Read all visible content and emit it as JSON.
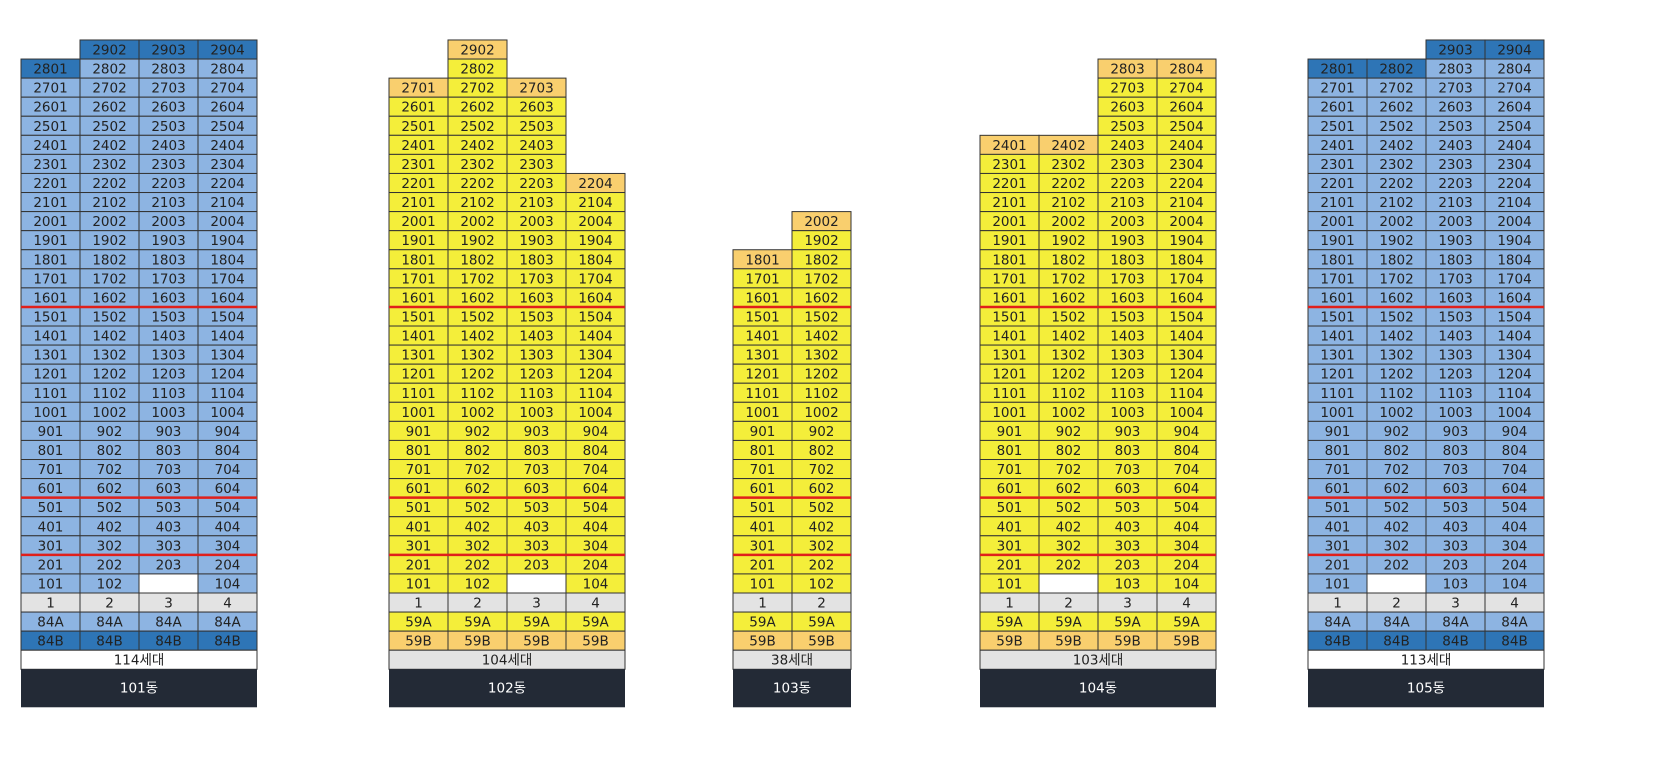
{
  "buildings": [
    {
      "name": "101동",
      "households": "114세대",
      "households_bg": "#ffffff",
      "color": "#8db4e2",
      "accent_color": "#2e75b6",
      "accent": [
        "2902",
        "2903",
        "2904",
        "2801"
      ],
      "floors": [
        [
          null,
          "2902",
          "2903",
          "2904"
        ],
        [
          "2801",
          "2802",
          "2803",
          "2804"
        ],
        [
          "2701",
          "2702",
          "2703",
          "2704"
        ],
        [
          "2601",
          "2602",
          "2603",
          "2604"
        ],
        [
          "2501",
          "2502",
          "2503",
          "2504"
        ],
        [
          "2401",
          "2402",
          "2403",
          "2404"
        ],
        [
          "2301",
          "2302",
          "2303",
          "2304"
        ],
        [
          "2201",
          "2202",
          "2203",
          "2204"
        ],
        [
          "2101",
          "2102",
          "2103",
          "2104"
        ],
        [
          "2001",
          "2002",
          "2003",
          "2004"
        ],
        [
          "1901",
          "1902",
          "1903",
          "1904"
        ],
        [
          "1801",
          "1802",
          "1803",
          "1804"
        ],
        [
          "1701",
          "1702",
          "1703",
          "1704"
        ],
        [
          "1601",
          "1602",
          "1603",
          "1604"
        ],
        [
          "1501",
          "1502",
          "1503",
          "1504"
        ],
        [
          "1401",
          "1402",
          "1403",
          "1404"
        ],
        [
          "1301",
          "1302",
          "1303",
          "1304"
        ],
        [
          "1201",
          "1202",
          "1203",
          "1204"
        ],
        [
          "1101",
          "1102",
          "1103",
          "1104"
        ],
        [
          "1001",
          "1002",
          "1003",
          "1004"
        ],
        [
          "901",
          "902",
          "903",
          "904"
        ],
        [
          "801",
          "802",
          "803",
          "804"
        ],
        [
          "701",
          "702",
          "703",
          "704"
        ],
        [
          "601",
          "602",
          "603",
          "604"
        ],
        [
          "501",
          "502",
          "503",
          "504"
        ],
        [
          "401",
          "402",
          "403",
          "404"
        ],
        [
          "301",
          "302",
          "303",
          "304"
        ],
        [
          "201",
          "202",
          "203",
          "204"
        ],
        [
          "101",
          "102",
          null,
          "104"
        ]
      ],
      "line_numbers": [
        "1",
        "2",
        "3",
        "4"
      ],
      "types": [
        [
          "84A",
          "84A",
          "84A",
          "84A"
        ],
        [
          "84B",
          "84B",
          "84B",
          "84B"
        ]
      ],
      "type_colors": [
        "#8db4e2",
        "#2e75b6"
      ]
    },
    {
      "name": "102동",
      "households": "104세대",
      "households_bg": "#e3e3e3",
      "color": "#f4ee3a",
      "accent_color": "#f9cf6e",
      "accent": [
        "2902",
        "2701",
        "2703",
        "2204"
      ],
      "floors": [
        [
          null,
          "2902",
          null,
          null
        ],
        [
          null,
          "2802",
          null,
          null
        ],
        [
          "2701",
          "2702",
          "2703",
          null
        ],
        [
          "2601",
          "2602",
          "2603",
          null
        ],
        [
          "2501",
          "2502",
          "2503",
          null
        ],
        [
          "2401",
          "2402",
          "2403",
          null
        ],
        [
          "2301",
          "2302",
          "2303",
          null
        ],
        [
          "2201",
          "2202",
          "2203",
          "2204"
        ],
        [
          "2101",
          "2102",
          "2103",
          "2104"
        ],
        [
          "2001",
          "2002",
          "2003",
          "2004"
        ],
        [
          "1901",
          "1902",
          "1903",
          "1904"
        ],
        [
          "1801",
          "1802",
          "1803",
          "1804"
        ],
        [
          "1701",
          "1702",
          "1703",
          "1704"
        ],
        [
          "1601",
          "1602",
          "1603",
          "1604"
        ],
        [
          "1501",
          "1502",
          "1503",
          "1504"
        ],
        [
          "1401",
          "1402",
          "1403",
          "1404"
        ],
        [
          "1301",
          "1302",
          "1303",
          "1304"
        ],
        [
          "1201",
          "1202",
          "1203",
          "1204"
        ],
        [
          "1101",
          "1102",
          "1103",
          "1104"
        ],
        [
          "1001",
          "1002",
          "1003",
          "1004"
        ],
        [
          "901",
          "902",
          "903",
          "904"
        ],
        [
          "801",
          "802",
          "803",
          "804"
        ],
        [
          "701",
          "702",
          "703",
          "704"
        ],
        [
          "601",
          "602",
          "603",
          "604"
        ],
        [
          "501",
          "502",
          "503",
          "504"
        ],
        [
          "401",
          "402",
          "403",
          "404"
        ],
        [
          "301",
          "302",
          "303",
          "304"
        ],
        [
          "201",
          "202",
          "203",
          "204"
        ],
        [
          "101",
          "102",
          null,
          "104"
        ]
      ],
      "line_numbers": [
        "1",
        "2",
        "3",
        "4"
      ],
      "types": [
        [
          "59A",
          "59A",
          "59A",
          "59A"
        ],
        [
          "59B",
          "59B",
          "59B",
          "59B"
        ]
      ],
      "type_colors": [
        "#f4ee3a",
        "#f9cf6e"
      ]
    },
    {
      "name": "103동",
      "households": "38세대",
      "households_bg": "#e3e3e3",
      "color": "#f4ee3a",
      "accent_color": "#f9cf6e",
      "accent": [
        "2002",
        "1801"
      ],
      "floors": [
        [
          null,
          "2002"
        ],
        [
          null,
          "1902"
        ],
        [
          "1801",
          "1802"
        ],
        [
          "1701",
          "1702"
        ],
        [
          "1601",
          "1602"
        ],
        [
          "1501",
          "1502"
        ],
        [
          "1401",
          "1402"
        ],
        [
          "1301",
          "1302"
        ],
        [
          "1201",
          "1202"
        ],
        [
          "1101",
          "1102"
        ],
        [
          "1001",
          "1002"
        ],
        [
          "901",
          "902"
        ],
        [
          "801",
          "802"
        ],
        [
          "701",
          "702"
        ],
        [
          "601",
          "602"
        ],
        [
          "501",
          "502"
        ],
        [
          "401",
          "402"
        ],
        [
          "301",
          "302"
        ],
        [
          "201",
          "202"
        ],
        [
          "101",
          "102"
        ]
      ],
      "line_numbers": [
        "1",
        "2"
      ],
      "types": [
        [
          "59A",
          "59A"
        ],
        [
          "59B",
          "59B"
        ]
      ],
      "type_colors": [
        "#f4ee3a",
        "#f9cf6e"
      ]
    },
    {
      "name": "104동",
      "households": "103세대",
      "households_bg": "#e3e3e3",
      "color": "#f4ee3a",
      "accent_color": "#f9cf6e",
      "accent": [
        "2803",
        "2804",
        "2401",
        "2402"
      ],
      "floors": [
        [
          null,
          null,
          "2803",
          "2804"
        ],
        [
          null,
          null,
          "2703",
          "2704"
        ],
        [
          null,
          null,
          "2603",
          "2604"
        ],
        [
          null,
          null,
          "2503",
          "2504"
        ],
        [
          "2401",
          "2402",
          "2403",
          "2404"
        ],
        [
          "2301",
          "2302",
          "2303",
          "2304"
        ],
        [
          "2201",
          "2202",
          "2203",
          "2204"
        ],
        [
          "2101",
          "2102",
          "2103",
          "2104"
        ],
        [
          "2001",
          "2002",
          "2003",
          "2004"
        ],
        [
          "1901",
          "1902",
          "1903",
          "1904"
        ],
        [
          "1801",
          "1802",
          "1803",
          "1804"
        ],
        [
          "1701",
          "1702",
          "1703",
          "1704"
        ],
        [
          "1601",
          "1602",
          "1603",
          "1604"
        ],
        [
          "1501",
          "1502",
          "1503",
          "1504"
        ],
        [
          "1401",
          "1402",
          "1403",
          "1404"
        ],
        [
          "1301",
          "1302",
          "1303",
          "1304"
        ],
        [
          "1201",
          "1202",
          "1203",
          "1204"
        ],
        [
          "1101",
          "1102",
          "1103",
          "1104"
        ],
        [
          "1001",
          "1002",
          "1003",
          "1004"
        ],
        [
          "901",
          "902",
          "903",
          "904"
        ],
        [
          "801",
          "802",
          "803",
          "804"
        ],
        [
          "701",
          "702",
          "703",
          "704"
        ],
        [
          "601",
          "602",
          "603",
          "604"
        ],
        [
          "501",
          "502",
          "503",
          "504"
        ],
        [
          "401",
          "402",
          "403",
          "404"
        ],
        [
          "301",
          "302",
          "303",
          "304"
        ],
        [
          "201",
          "202",
          "203",
          "204"
        ],
        [
          "101",
          null,
          "103",
          "104"
        ]
      ],
      "line_numbers": [
        "1",
        "2",
        "3",
        "4"
      ],
      "types": [
        [
          "59A",
          "59A",
          "59A",
          "59A"
        ],
        [
          "59B",
          "59B",
          "59B",
          "59B"
        ]
      ],
      "type_colors": [
        "#f4ee3a",
        "#f9cf6e"
      ]
    },
    {
      "name": "105동",
      "households": "113세대",
      "households_bg": "#ffffff",
      "color": "#8db4e2",
      "accent_color": "#2e75b6",
      "accent": [
        "2903",
        "2904",
        "2801",
        "2802"
      ],
      "floors": [
        [
          null,
          null,
          "2903",
          "2904"
        ],
        [
          "2801",
          "2802",
          "2803",
          "2804"
        ],
        [
          "2701",
          "2702",
          "2703",
          "2704"
        ],
        [
          "2601",
          "2602",
          "2603",
          "2604"
        ],
        [
          "2501",
          "2502",
          "2503",
          "2504"
        ],
        [
          "2401",
          "2402",
          "2403",
          "2404"
        ],
        [
          "2301",
          "2302",
          "2303",
          "2304"
        ],
        [
          "2201",
          "2202",
          "2203",
          "2204"
        ],
        [
          "2101",
          "2102",
          "2103",
          "2104"
        ],
        [
          "2001",
          "2002",
          "2003",
          "2004"
        ],
        [
          "1901",
          "1902",
          "1903",
          "1904"
        ],
        [
          "1801",
          "1802",
          "1803",
          "1804"
        ],
        [
          "1701",
          "1702",
          "1703",
          "1704"
        ],
        [
          "1601",
          "1602",
          "1603",
          "1604"
        ],
        [
          "1501",
          "1502",
          "1503",
          "1504"
        ],
        [
          "1401",
          "1402",
          "1403",
          "1404"
        ],
        [
          "1301",
          "1302",
          "1303",
          "1304"
        ],
        [
          "1201",
          "1202",
          "1203",
          "1204"
        ],
        [
          "1101",
          "1102",
          "1103",
          "1104"
        ],
        [
          "1001",
          "1002",
          "1003",
          "1004"
        ],
        [
          "901",
          "902",
          "903",
          "904"
        ],
        [
          "801",
          "802",
          "803",
          "804"
        ],
        [
          "701",
          "702",
          "703",
          "704"
        ],
        [
          "601",
          "602",
          "603",
          "604"
        ],
        [
          "501",
          "502",
          "503",
          "504"
        ],
        [
          "401",
          "402",
          "403",
          "404"
        ],
        [
          "301",
          "302",
          "303",
          "304"
        ],
        [
          "201",
          "202",
          "203",
          "204"
        ],
        [
          "101",
          null,
          "103",
          "104"
        ]
      ],
      "line_numbers": [
        "1",
        "2",
        "3",
        "4"
      ],
      "types": [
        [
          "84A",
          "84A",
          "84A",
          "84A"
        ],
        [
          "84B",
          "84B",
          "84B",
          "84B"
        ]
      ],
      "type_colors": [
        "#8db4e2",
        "#2e75b6"
      ]
    }
  ]
}
